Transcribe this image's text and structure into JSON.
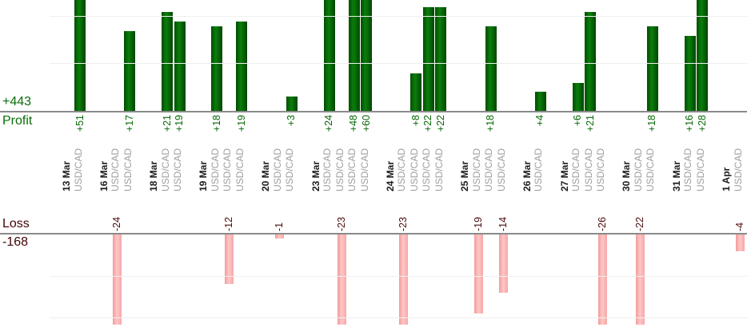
{
  "chart_data": {
    "type": "bar",
    "panels": {
      "profit": {
        "title": "Profit",
        "total": "+443"
      },
      "loss": {
        "title": "Loss",
        "total": "-168"
      }
    },
    "x_axis_dates": [
      "13 Mar",
      "16 Mar",
      "18 Mar",
      "19 Mar",
      "20 Mar",
      "23 Mar",
      "24 Mar",
      "25 Mar",
      "26 Mar",
      "27 Mar",
      "30 Mar",
      "31 Mar",
      "1 Apr"
    ],
    "profit_gridline_values": [
      10,
      20
    ],
    "loss_gridline_values": [
      -10,
      -20
    ],
    "trades": [
      {
        "date": "13 Mar",
        "symbol": "USD/CAD",
        "value": 51,
        "label": "+51"
      },
      {
        "date": "16 Mar",
        "symbol": "USD/CAD",
        "value": -24,
        "label": "-24"
      },
      {
        "date": "16 Mar",
        "symbol": "USD/CAD",
        "value": 17,
        "label": "+17"
      },
      {
        "date": "18 Mar",
        "symbol": "USD/CAD",
        "value": 21,
        "label": "+21"
      },
      {
        "date": "18 Mar",
        "symbol": "USD/CAD",
        "value": 19,
        "label": "+19"
      },
      {
        "date": "19 Mar",
        "symbol": "USD/CAD",
        "value": 18,
        "label": "+18"
      },
      {
        "date": "19 Mar",
        "symbol": "USD/CAD",
        "value": -12,
        "label": "-12"
      },
      {
        "date": "19 Mar",
        "symbol": "USD/CAD",
        "value": 19,
        "label": "+19"
      },
      {
        "date": "20 Mar",
        "symbol": "USD/CAD",
        "value": -1,
        "label": "-1"
      },
      {
        "date": "20 Mar",
        "symbol": "USD/CAD",
        "value": 3,
        "label": "+3"
      },
      {
        "date": "23 Mar",
        "symbol": "USD/CAD",
        "value": 24,
        "label": "+24"
      },
      {
        "date": "23 Mar",
        "symbol": "USD/CAD",
        "value": -23,
        "label": "-23"
      },
      {
        "date": "23 Mar",
        "symbol": "USD/CAD",
        "value": 48,
        "label": "+48"
      },
      {
        "date": "23 Mar",
        "symbol": "USD/CAD",
        "value": 60,
        "label": "+60"
      },
      {
        "date": "24 Mar",
        "symbol": "USD/CAD",
        "value": -23,
        "label": "-23"
      },
      {
        "date": "24 Mar",
        "symbol": "USD/CAD",
        "value": 8,
        "label": "+8"
      },
      {
        "date": "24 Mar",
        "symbol": "USD/CAD",
        "value": 22,
        "label": "+22"
      },
      {
        "date": "24 Mar",
        "symbol": "USD/CAD",
        "value": 22,
        "label": "+22"
      },
      {
        "date": "25 Mar",
        "symbol": "USD/CAD",
        "value": -19,
        "label": "-19"
      },
      {
        "date": "25 Mar",
        "symbol": "USD/CAD",
        "value": 18,
        "label": "+18"
      },
      {
        "date": "25 Mar",
        "symbol": "USD/CAD",
        "value": -14,
        "label": "-14"
      },
      {
        "date": "26 Mar",
        "symbol": "USD/CAD",
        "value": 4,
        "label": "+4"
      },
      {
        "date": "27 Mar",
        "symbol": "USD/CAD",
        "value": 6,
        "label": "+6"
      },
      {
        "date": "27 Mar",
        "symbol": "USD/CAD",
        "value": 21,
        "label": "+21"
      },
      {
        "date": "27 Mar",
        "symbol": "USD/CAD",
        "value": -26,
        "label": "-26"
      },
      {
        "date": "30 Mar",
        "symbol": "USD/CAD",
        "value": -22,
        "label": "-22"
      },
      {
        "date": "30 Mar",
        "symbol": "USD/CAD",
        "value": 18,
        "label": "+18"
      },
      {
        "date": "31 Mar",
        "symbol": "USD/CAD",
        "value": 16,
        "label": "+16"
      },
      {
        "date": "31 Mar",
        "symbol": "USD/CAD",
        "value": 28,
        "label": "+28"
      },
      {
        "date": "1 Apr",
        "symbol": "USD/CAD",
        "value": -4,
        "label": "-4"
      }
    ]
  }
}
